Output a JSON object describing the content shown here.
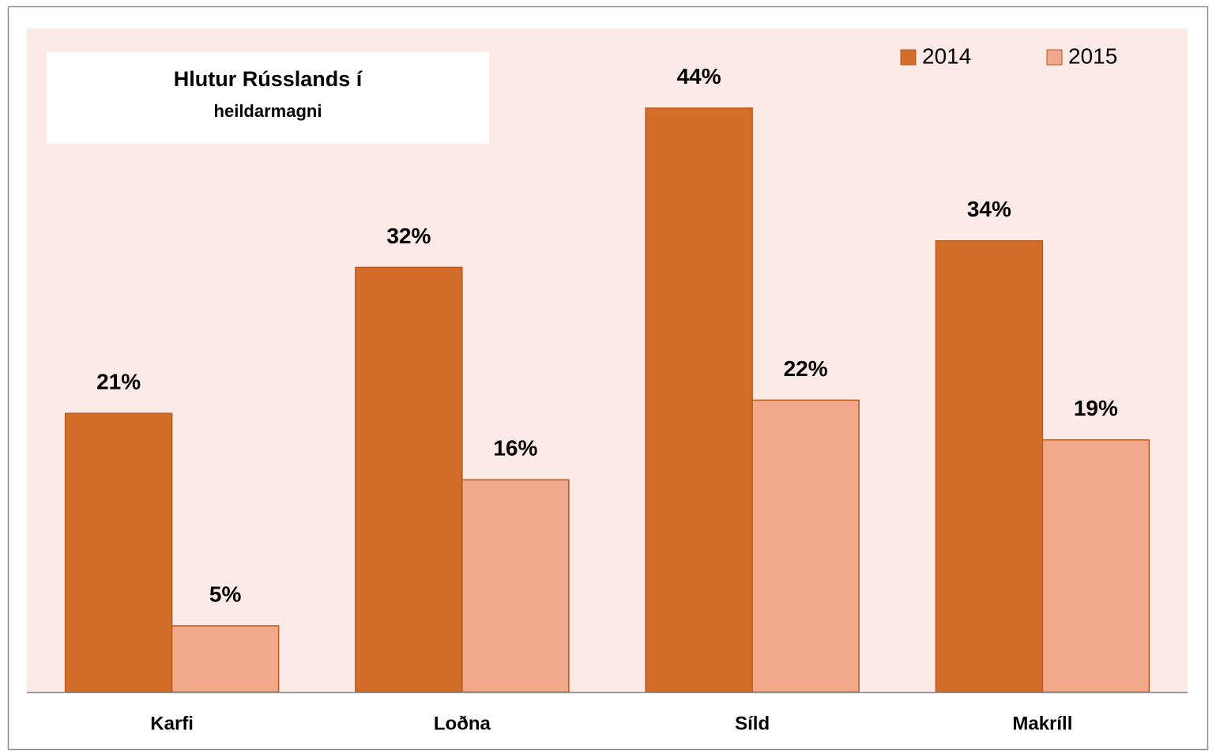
{
  "chart_data": {
    "type": "bar",
    "title": "Hlutur Rússlands í",
    "subtitle": "heildarmagni",
    "categories": [
      "Karfi",
      "Loðna",
      "Síld",
      "Makríll"
    ],
    "series": [
      {
        "name": "2014",
        "color": "#d36d2a",
        "values": [
          21,
          32,
          44,
          34
        ],
        "value_labels": [
          "21%",
          "32%",
          "44%",
          "34%"
        ]
      },
      {
        "name": "2015",
        "color": "#f2a88b",
        "values": [
          5,
          16,
          22,
          19
        ],
        "value_labels": [
          "5%",
          "16%",
          "22%",
          "19%"
        ]
      }
    ],
    "ylim": [
      0,
      50
    ],
    "legend": "top-right"
  }
}
